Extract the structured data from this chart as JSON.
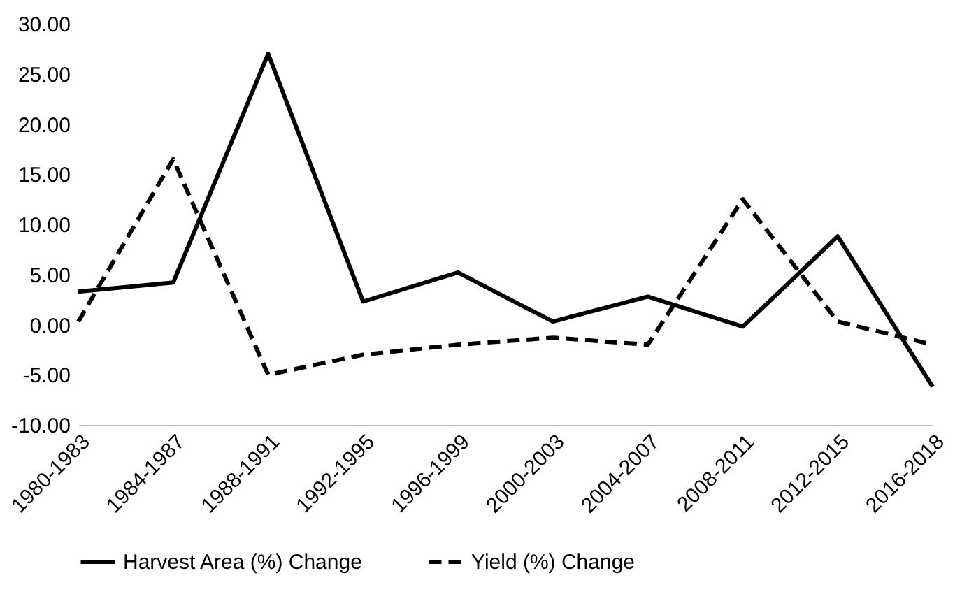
{
  "chart_data": {
    "type": "line",
    "categories": [
      "1980-1983",
      "1984-1987",
      "1988-1991",
      "1992-1995",
      "1996-1999",
      "2000-2003",
      "2004-2007",
      "2008-2011",
      "2012-2015",
      "2016-2018"
    ],
    "series": [
      {
        "name": "Harvest Area (%) Change",
        "color": "#000000",
        "line_style": "solid",
        "values": [
          3.3,
          4.2,
          27.0,
          2.3,
          5.2,
          0.3,
          2.8,
          -0.2,
          8.8,
          -6.2
        ]
      },
      {
        "name": "Yield (%) Change",
        "color": "#000000",
        "line_style": "dashed",
        "values": [
          0.3,
          16.5,
          -5.0,
          -3.0,
          -2.0,
          -1.3,
          -2.0,
          12.5,
          0.3,
          -2.0
        ]
      }
    ],
    "ylim": [
      -10,
      30
    ],
    "yticks": [
      {
        "value": -10,
        "label": "-10.00"
      },
      {
        "value": -5,
        "label": "-5.00"
      },
      {
        "value": 0,
        "label": "0.00"
      },
      {
        "value": 5,
        "label": "5.00"
      },
      {
        "value": 10,
        "label": "10.00"
      },
      {
        "value": 15,
        "label": "15.00"
      },
      {
        "value": 20,
        "label": "20.00"
      },
      {
        "value": 25,
        "label": "25.00"
      },
      {
        "value": 30,
        "label": "30.00"
      }
    ],
    "grid": false,
    "legend": "bottom",
    "marker": "none"
  }
}
